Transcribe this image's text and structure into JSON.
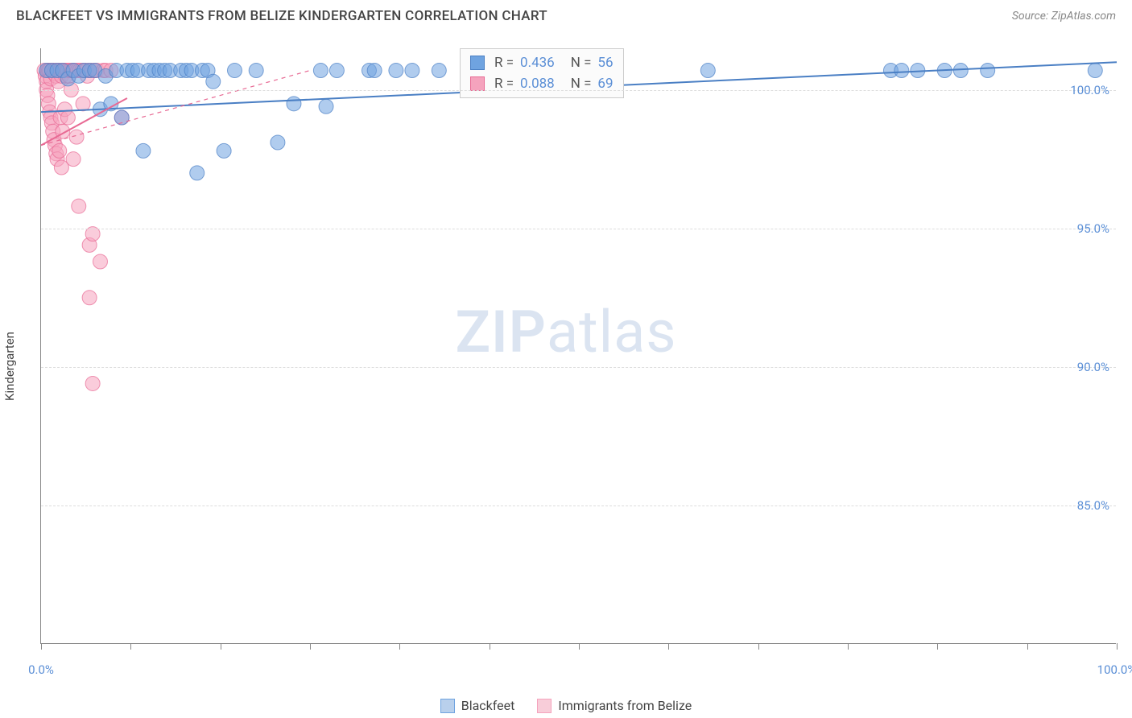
{
  "title": "BLACKFEET VS IMMIGRANTS FROM BELIZE KINDERGARTEN CORRELATION CHART",
  "source": "Source: ZipAtlas.com",
  "ylabel": "Kindergarten",
  "watermark_bold": "ZIP",
  "watermark_light": "atlas",
  "chart": {
    "type": "scatter",
    "xlim": [
      0,
      100
    ],
    "ylim": [
      80,
      101.5
    ],
    "yticks": [
      {
        "v": 85,
        "label": "85.0%"
      },
      {
        "v": 90,
        "label": "90.0%"
      },
      {
        "v": 95,
        "label": "95.0%"
      },
      {
        "v": 100,
        "label": "100.0%"
      }
    ],
    "xticks_major": [
      0,
      100
    ],
    "xticks_minor": [
      8.33,
      16.66,
      25,
      33.33,
      41.66,
      50,
      58.33,
      66.66,
      75,
      83.33,
      91.66
    ],
    "xtick_labels": {
      "0": "0.0%",
      "100": "100.0%"
    },
    "grid_color": "#dddddd",
    "axis_color": "#888888",
    "label_color": "#5b8fd6",
    "background": "#ffffff",
    "marker_radius": 9,
    "marker_opacity": 0.55,
    "line_width": 2,
    "series": [
      {
        "name": "Blackfeet",
        "color": "#6fa3e0",
        "stroke": "#4a7fc4",
        "R": "0.436",
        "N": "56",
        "points": [
          [
            0.5,
            100.7
          ],
          [
            1.0,
            100.7
          ],
          [
            1.5,
            100.7
          ],
          [
            2.0,
            100.7
          ],
          [
            2.5,
            100.4
          ],
          [
            3.0,
            100.7
          ],
          [
            3.5,
            100.5
          ],
          [
            4.0,
            100.7
          ],
          [
            4.5,
            100.7
          ],
          [
            5.0,
            100.7
          ],
          [
            5.5,
            99.3
          ],
          [
            6.0,
            100.5
          ],
          [
            6.5,
            99.5
          ],
          [
            7.0,
            100.7
          ],
          [
            7.5,
            99.0
          ],
          [
            8.0,
            100.7
          ],
          [
            8.5,
            100.7
          ],
          [
            9.0,
            100.7
          ],
          [
            9.5,
            97.8
          ],
          [
            10.0,
            100.7
          ],
          [
            10.5,
            100.7
          ],
          [
            11.0,
            100.7
          ],
          [
            11.5,
            100.7
          ],
          [
            12.0,
            100.7
          ],
          [
            13.0,
            100.7
          ],
          [
            13.5,
            100.7
          ],
          [
            14.0,
            100.7
          ],
          [
            14.5,
            97.0
          ],
          [
            15.0,
            100.7
          ],
          [
            15.5,
            100.7
          ],
          [
            16.0,
            100.3
          ],
          [
            17.0,
            97.8
          ],
          [
            18.0,
            100.7
          ],
          [
            20.0,
            100.7
          ],
          [
            22.0,
            98.1
          ],
          [
            23.5,
            99.5
          ],
          [
            26.0,
            100.7
          ],
          [
            26.5,
            99.4
          ],
          [
            27.5,
            100.7
          ],
          [
            30.5,
            100.7
          ],
          [
            31.0,
            100.7
          ],
          [
            33.0,
            100.7
          ],
          [
            34.5,
            100.7
          ],
          [
            37.0,
            100.7
          ],
          [
            44.0,
            100.7
          ],
          [
            44.5,
            100.7
          ],
          [
            46.0,
            100.7
          ],
          [
            47.0,
            100.7
          ],
          [
            62.0,
            100.7
          ],
          [
            79.0,
            100.7
          ],
          [
            80.0,
            100.7
          ],
          [
            81.5,
            100.7
          ],
          [
            84.0,
            100.7
          ],
          [
            85.5,
            100.7
          ],
          [
            88.0,
            100.7
          ],
          [
            98.0,
            100.7
          ]
        ],
        "trend": [
          [
            0,
            99.2
          ],
          [
            100,
            101.0
          ]
        ],
        "dashed_trend": null
      },
      {
        "name": "Immigrants from Belize",
        "color": "#f5a3bd",
        "stroke": "#e86a94",
        "R": "0.088",
        "N": "69",
        "points": [
          [
            0.3,
            100.7
          ],
          [
            0.4,
            100.5
          ],
          [
            0.5,
            100.3
          ],
          [
            0.5,
            100.0
          ],
          [
            0.6,
            99.8
          ],
          [
            0.6,
            100.7
          ],
          [
            0.7,
            99.5
          ],
          [
            0.7,
            100.7
          ],
          [
            0.8,
            100.7
          ],
          [
            0.8,
            99.2
          ],
          [
            0.9,
            100.4
          ],
          [
            0.9,
            99.0
          ],
          [
            1.0,
            100.7
          ],
          [
            1.0,
            98.8
          ],
          [
            1.1,
            100.7
          ],
          [
            1.1,
            98.5
          ],
          [
            1.2,
            100.6
          ],
          [
            1.2,
            98.2
          ],
          [
            1.3,
            100.7
          ],
          [
            1.3,
            98.0
          ],
          [
            1.4,
            100.5
          ],
          [
            1.4,
            97.7
          ],
          [
            1.5,
            100.7
          ],
          [
            1.5,
            97.5
          ],
          [
            1.6,
            100.3
          ],
          [
            1.7,
            100.7
          ],
          [
            1.7,
            97.8
          ],
          [
            1.8,
            100.7
          ],
          [
            1.8,
            99.0
          ],
          [
            1.9,
            100.5
          ],
          [
            1.9,
            97.2
          ],
          [
            2.0,
            100.7
          ],
          [
            2.0,
            98.5
          ],
          [
            2.1,
            100.7
          ],
          [
            2.2,
            99.3
          ],
          [
            2.2,
            100.7
          ],
          [
            2.3,
            100.5
          ],
          [
            2.4,
            100.7
          ],
          [
            2.5,
            100.7
          ],
          [
            2.5,
            99.0
          ],
          [
            2.6,
            100.5
          ],
          [
            2.7,
            100.7
          ],
          [
            2.8,
            100.0
          ],
          [
            2.9,
            100.7
          ],
          [
            3.0,
            100.7
          ],
          [
            3.0,
            97.5
          ],
          [
            3.2,
            100.7
          ],
          [
            3.3,
            98.3
          ],
          [
            3.4,
            100.7
          ],
          [
            3.5,
            95.8
          ],
          [
            3.6,
            100.7
          ],
          [
            3.8,
            100.7
          ],
          [
            3.9,
            99.5
          ],
          [
            4.0,
            100.7
          ],
          [
            4.2,
            100.7
          ],
          [
            4.3,
            100.5
          ],
          [
            4.5,
            100.7
          ],
          [
            4.5,
            94.4
          ],
          [
            4.7,
            100.7
          ],
          [
            4.8,
            94.8
          ],
          [
            5.0,
            100.7
          ],
          [
            5.2,
            100.7
          ],
          [
            5.5,
            93.8
          ],
          [
            5.8,
            100.7
          ],
          [
            6.0,
            100.7
          ],
          [
            6.5,
            100.7
          ],
          [
            4.5,
            92.5
          ],
          [
            4.8,
            89.4
          ],
          [
            7.5,
            99.0
          ]
        ],
        "trend": [
          [
            0,
            98.0
          ],
          [
            8,
            99.7
          ]
        ],
        "dashed_trend": [
          [
            0,
            98.0
          ],
          [
            25,
            100.7
          ]
        ]
      }
    ]
  },
  "legend_bottom": [
    {
      "label": "Blackfeet",
      "fill": "#b9d0ec",
      "stroke": "#6fa3e0"
    },
    {
      "label": "Immigrants from Belize",
      "fill": "#f8cdd9",
      "stroke": "#f5a3bd"
    }
  ]
}
